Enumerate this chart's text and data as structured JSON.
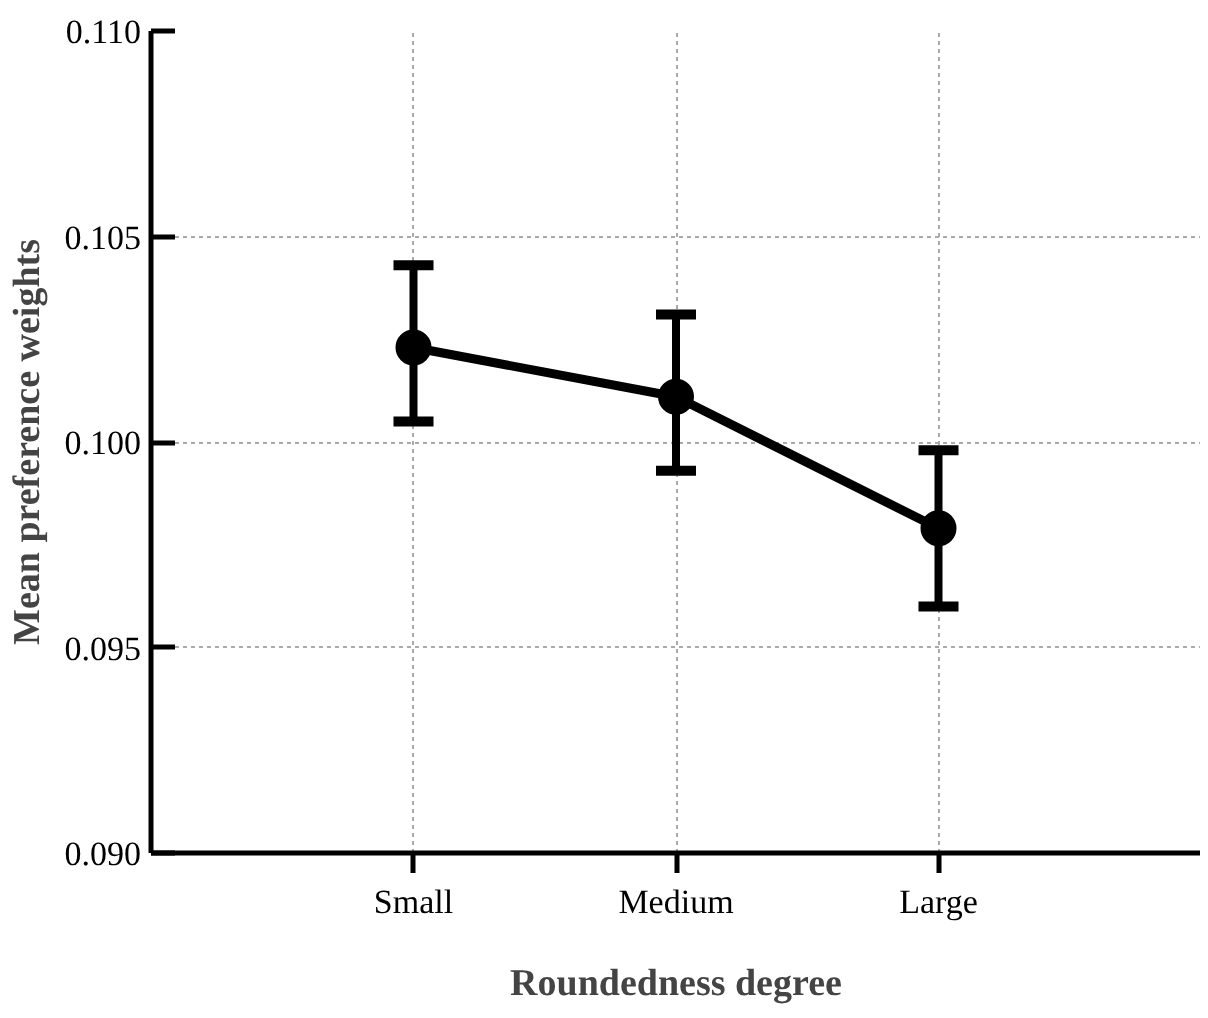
{
  "chart_data": {
    "type": "line",
    "xlabel": "Roundedness degree",
    "ylabel": "Mean preference weights",
    "categories": [
      "Small",
      "Medium",
      "Large"
    ],
    "series": [
      {
        "color": "#000000",
        "values": [
          0.1023,
          0.1011,
          0.0979
        ],
        "errors": [
          [
            0.1005,
            0.1043
          ],
          [
            0.0993,
            0.1031
          ],
          [
            0.096,
            0.0998
          ]
        ]
      }
    ],
    "ylim": [
      0.09,
      0.11
    ],
    "yticks": [
      {
        "value": 0.09,
        "label": "0.090"
      },
      {
        "value": 0.095,
        "label": "0.095"
      },
      {
        "value": 0.1,
        "label": "0.100"
      },
      {
        "value": 0.105,
        "label": "0.105"
      },
      {
        "value": 0.11,
        "label": "0.110"
      }
    ],
    "grid": true,
    "marker": "circle",
    "line_style": "solid"
  }
}
